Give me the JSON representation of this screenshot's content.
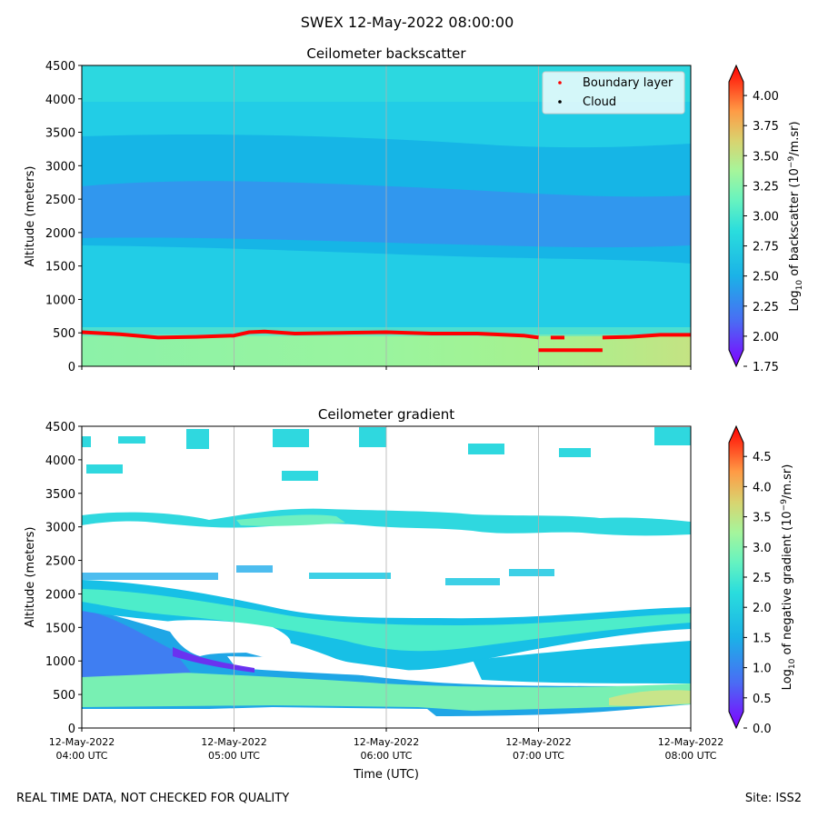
{
  "figure": {
    "suptitle": "SWEX 12-May-2022 08:00:00",
    "footer_left": "REAL TIME DATA, NOT CHECKED FOR QUALITY",
    "footer_right": "Site: ISS2"
  },
  "chart_data": [
    {
      "type": "heatmap",
      "title": "Ceilometer backscatter",
      "xlabel": "",
      "ylabel": "Altitude (meters)",
      "ylim": [
        0,
        4500
      ],
      "yticks": [
        "0",
        "500",
        "1000",
        "1500",
        "2000",
        "2500",
        "3000",
        "3500",
        "4000",
        "4500"
      ],
      "xlim_hours_utc": [
        4,
        8
      ],
      "xgrid": true,
      "legend": {
        "location": "top-right",
        "entries": [
          {
            "label": "Boundary layer",
            "color": "#ff0000"
          },
          {
            "label": "Cloud",
            "color": "#000000"
          }
        ]
      },
      "colorbar": {
        "label_prefix": "Log",
        "label_sub": "10",
        "label_mid": " of backscatter (10",
        "label_sup": "−9",
        "label_suffix": "/m.sr)",
        "min": 1.75,
        "max": 4.25,
        "extend": "both",
        "ticks": [
          "1.75",
          "2.00",
          "2.25",
          "2.50",
          "2.75",
          "3.00",
          "3.25",
          "3.50",
          "3.75",
          "4.00"
        ]
      },
      "field_description": {
        "surface_layer_top_m": 450,
        "aerosol_band_center_m": 1900
      },
      "series": [
        {
          "name": "Boundary layer",
          "x_hours_utc": [
            4.0,
            4.25,
            4.5,
            4.75,
            5.0,
            5.1,
            5.2,
            5.4,
            5.7,
            6.0,
            6.3,
            6.6,
            6.9,
            7.0
          ],
          "y_m": [
            510,
            480,
            430,
            440,
            460,
            510,
            520,
            490,
            500,
            510,
            490,
            490,
            460,
            430
          ]
        },
        {
          "name": "Boundary layer",
          "x_hours_utc": [
            7.0,
            7.42
          ],
          "y_m": [
            240,
            240
          ]
        },
        {
          "name": "Boundary layer",
          "x_hours_utc": [
            7.08,
            7.17
          ],
          "y_m": [
            430,
            430
          ]
        },
        {
          "name": "Boundary layer",
          "x_hours_utc": [
            7.42,
            7.6,
            7.8,
            8.0
          ],
          "y_m": [
            430,
            440,
            470,
            470
          ]
        }
      ]
    },
    {
      "type": "heatmap",
      "title": "Ceilometer gradient",
      "xlabel": "Time (UTC)",
      "ylabel": "Altitude (meters)",
      "ylim": [
        0,
        4500
      ],
      "yticks": [
        "0",
        "500",
        "1000",
        "1500",
        "2000",
        "2500",
        "3000",
        "3500",
        "4000",
        "4500"
      ],
      "xlim_hours_utc": [
        4,
        8
      ],
      "xgrid": true,
      "xticks": [
        {
          "line1": "12-May-2022",
          "line2": "04:00 UTC"
        },
        {
          "line1": "12-May-2022",
          "line2": "05:00 UTC"
        },
        {
          "line1": "12-May-2022",
          "line2": "06:00 UTC"
        },
        {
          "line1": "12-May-2022",
          "line2": "07:00 UTC"
        },
        {
          "line1": "12-May-2022",
          "line2": "08:00 UTC"
        }
      ],
      "colorbar": {
        "label_prefix": "Log",
        "label_sub": "10",
        "label_mid": " of negative gradient (10",
        "label_sup": "−9",
        "label_suffix": "/m.sr)",
        "min": 0.0,
        "max": 5.0,
        "extend": "both",
        "ticks": [
          "0.0",
          "0.5",
          "1.0",
          "1.5",
          "2.0",
          "2.5",
          "3.0",
          "3.5",
          "4.0",
          "4.5"
        ]
      },
      "features": {
        "lower_layer_m": [
          300,
          1800
        ],
        "upper_band_m": [
          1550,
          2200
        ],
        "cloud_layer_m": [
          3000,
          3300
        ],
        "top_patches_m": [
          3800,
          4500
        ]
      }
    }
  ]
}
